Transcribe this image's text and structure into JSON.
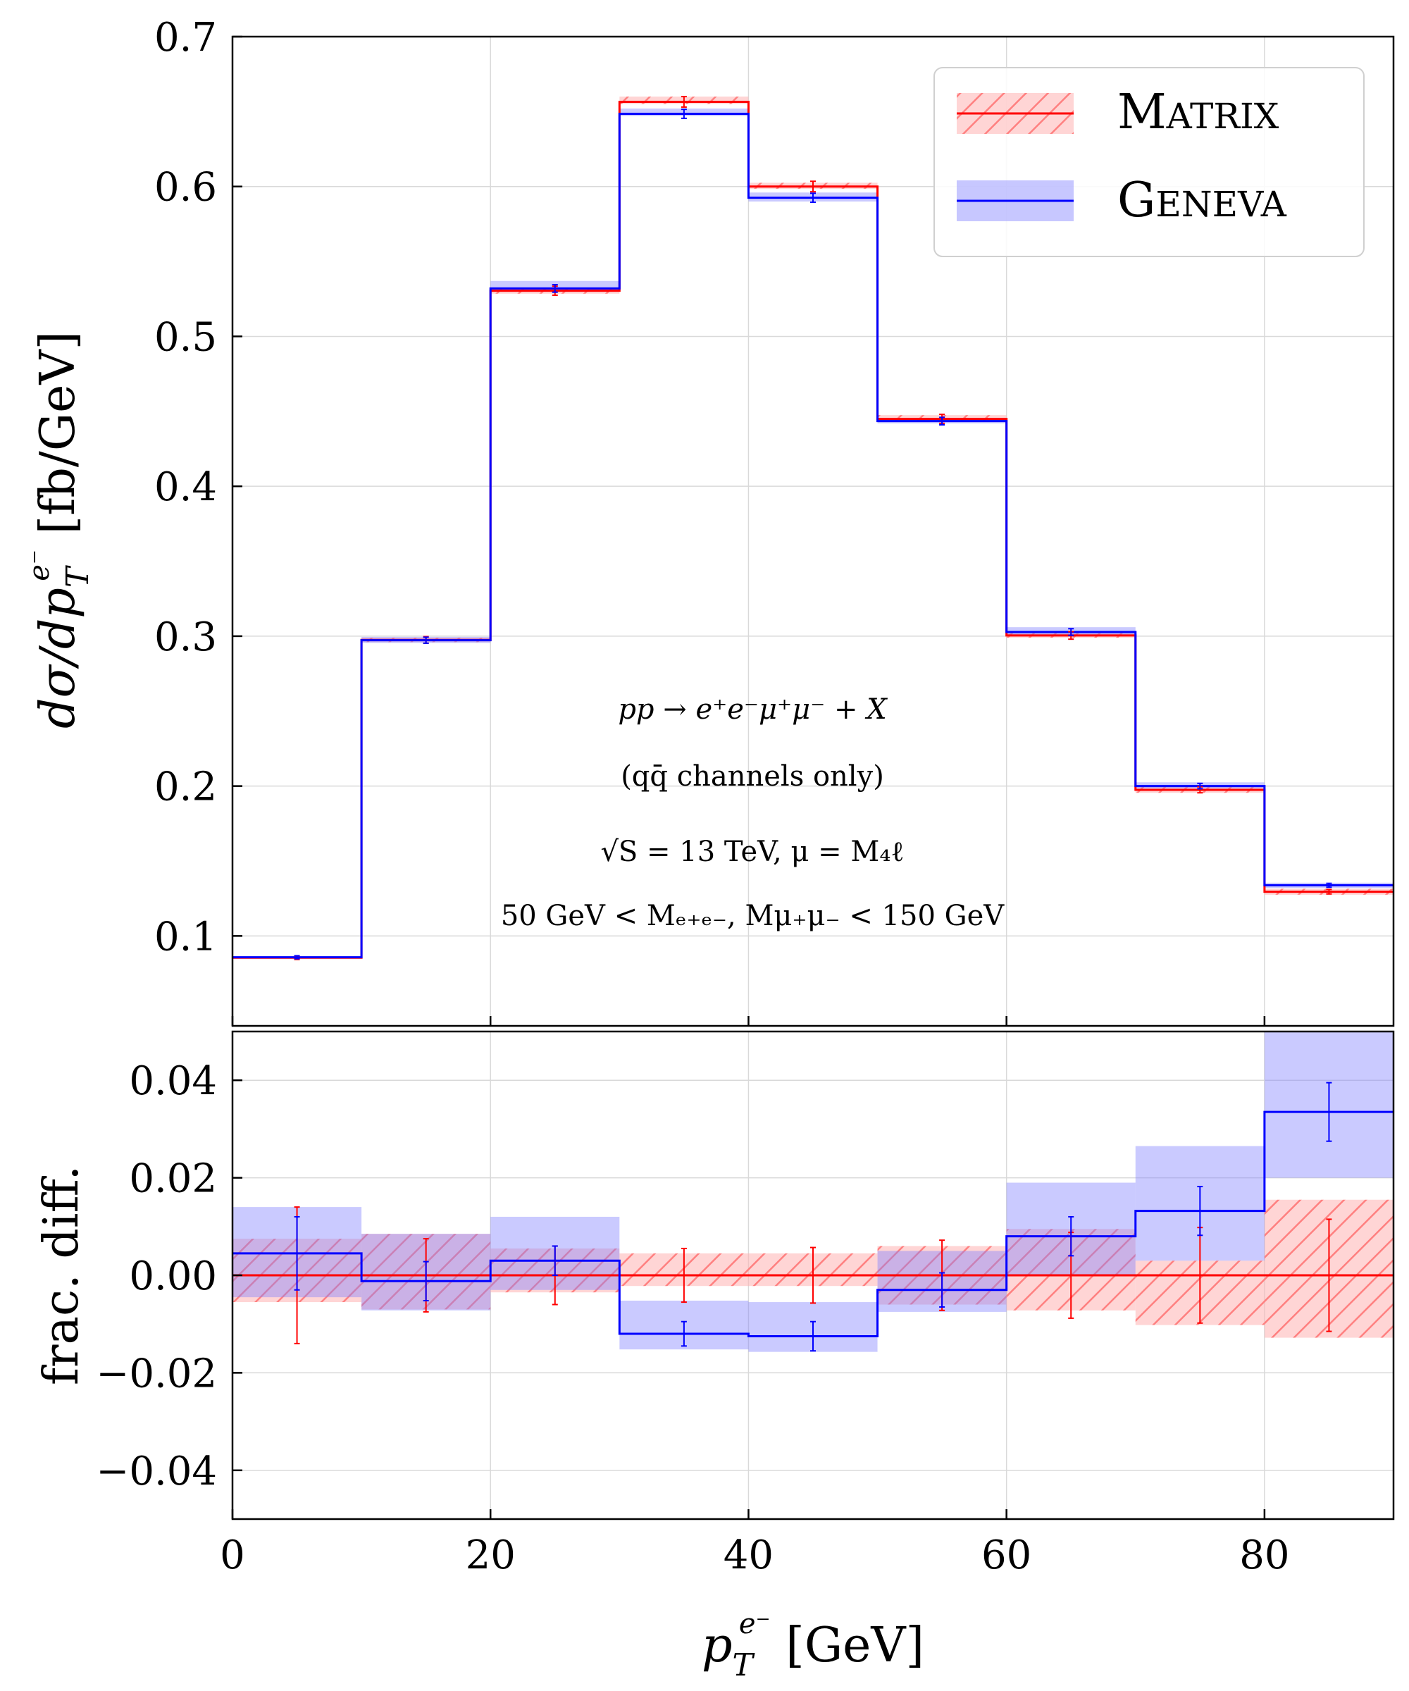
{
  "chart_data": [
    {
      "panel": "main",
      "type": "step",
      "ylabel": "dσ/dp_T^{e⁻} [fb/GeV]",
      "ylabel_parts": {
        "base": "dσ/dp",
        "sub": "T",
        "sup": "e⁻",
        "unit": " [fb/GeV]"
      },
      "xlim": [
        0,
        90
      ],
      "ylim": [
        0.04,
        0.7
      ],
      "grid": true,
      "yticks": [
        "0.1",
        "0.2",
        "0.3",
        "0.4",
        "0.5",
        "0.6",
        "0.7"
      ],
      "ytick_values": [
        0.1,
        0.2,
        0.3,
        0.4,
        0.5,
        0.6,
        0.7
      ],
      "bin_edges": [
        0,
        10,
        20,
        30,
        40,
        50,
        60,
        70,
        80,
        90
      ],
      "series": [
        {
          "name": "Matrix",
          "color": "#ff0000",
          "band_style": "hatched",
          "values": [
            0.0855,
            0.2975,
            0.5305,
            0.6565,
            0.6,
            0.445,
            0.3005,
            0.1975,
            0.1295
          ],
          "band_low": [
            0.0851,
            0.296,
            0.5285,
            0.655,
            0.5985,
            0.4435,
            0.299,
            0.1955,
            0.1275
          ],
          "band_high": [
            0.0859,
            0.299,
            0.5325,
            0.66,
            0.6025,
            0.4475,
            0.3025,
            0.1995,
            0.1315
          ],
          "err": [
            0.0012,
            0.0022,
            0.003,
            0.0035,
            0.0035,
            0.003,
            0.0025,
            0.002,
            0.0015
          ]
        },
        {
          "name": "Geneva",
          "color": "#0000ff",
          "band_style": "solid",
          "values": [
            0.0858,
            0.2973,
            0.532,
            0.6485,
            0.5925,
            0.4435,
            0.3028,
            0.2,
            0.1338
          ],
          "band_low": [
            0.0852,
            0.2955,
            0.53,
            0.647,
            0.59,
            0.442,
            0.301,
            0.1985,
            0.132
          ],
          "band_high": [
            0.0864,
            0.2995,
            0.537,
            0.652,
            0.596,
            0.4455,
            0.306,
            0.2025,
            0.1355
          ],
          "err": [
            0.001,
            0.002,
            0.0025,
            0.003,
            0.003,
            0.0025,
            0.0022,
            0.0018,
            0.0013
          ]
        }
      ],
      "legend": {
        "placement": "top-right",
        "entries": [
          "Matrix",
          "Geneva"
        ]
      },
      "annotations": [
        "pp → e⁺e⁻μ⁺μ⁻ + X",
        "(qq̄ channels only)",
        "√S = 13 TeV, μ = M₄ℓ",
        "50 GeV < Mₑ₊ₑ₋, Mμ₊μ₋ < 150 GeV"
      ]
    },
    {
      "panel": "ratio",
      "type": "step",
      "ylabel": "frac. diff.",
      "xlabel": "p_T^{e⁻} [GeV]",
      "xlabel_parts": {
        "base": "p",
        "sub": "T",
        "sup": "e⁻",
        "unit": " [GeV]"
      },
      "xlim": [
        0,
        90
      ],
      "ylim": [
        -0.05,
        0.05
      ],
      "grid": true,
      "xticks": [
        "0",
        "20",
        "40",
        "60",
        "80"
      ],
      "xtick_values": [
        0,
        20,
        40,
        60,
        80
      ],
      "yticks": [
        "−0.04",
        "−0.02",
        "0.00",
        "0.02",
        "0.04"
      ],
      "ytick_values": [
        -0.04,
        -0.02,
        0.0,
        0.02,
        0.04
      ],
      "bin_edges": [
        0,
        10,
        20,
        30,
        40,
        50,
        60,
        70,
        80,
        90
      ],
      "series": [
        {
          "name": "Matrix",
          "color": "#ff0000",
          "band_style": "hatched",
          "values": [
            0,
            0,
            0,
            0,
            0,
            0,
            0,
            0,
            0
          ],
          "band_low": [
            -0.0055,
            -0.007,
            -0.0035,
            -0.0022,
            -0.0022,
            -0.006,
            -0.0072,
            -0.0102,
            -0.0128
          ],
          "band_high": [
            0.0075,
            0.0085,
            0.0055,
            0.0045,
            0.0045,
            0.006,
            0.0095,
            0.003,
            0.0155
          ],
          "err": [
            0.014,
            0.0075,
            0.006,
            0.0055,
            0.0057,
            0.0072,
            0.0088,
            0.0098,
            0.0115
          ]
        },
        {
          "name": "Geneva",
          "color": "#0000ff",
          "band_style": "solid",
          "values": [
            0.0045,
            -0.0012,
            0.003,
            -0.012,
            -0.0125,
            -0.003,
            0.008,
            0.0132,
            0.0335
          ],
          "band_low": [
            -0.0045,
            -0.0072,
            -0.003,
            -0.0152,
            -0.0157,
            -0.0075,
            0.0,
            0.003,
            0.02
          ],
          "band_high": [
            0.014,
            0.0085,
            0.012,
            -0.0052,
            -0.0055,
            0.005,
            0.019,
            0.0265,
            0.05
          ],
          "err": [
            0.0075,
            0.004,
            0.003,
            0.0025,
            0.003,
            0.0035,
            0.004,
            0.005,
            0.006
          ]
        }
      ]
    }
  ]
}
